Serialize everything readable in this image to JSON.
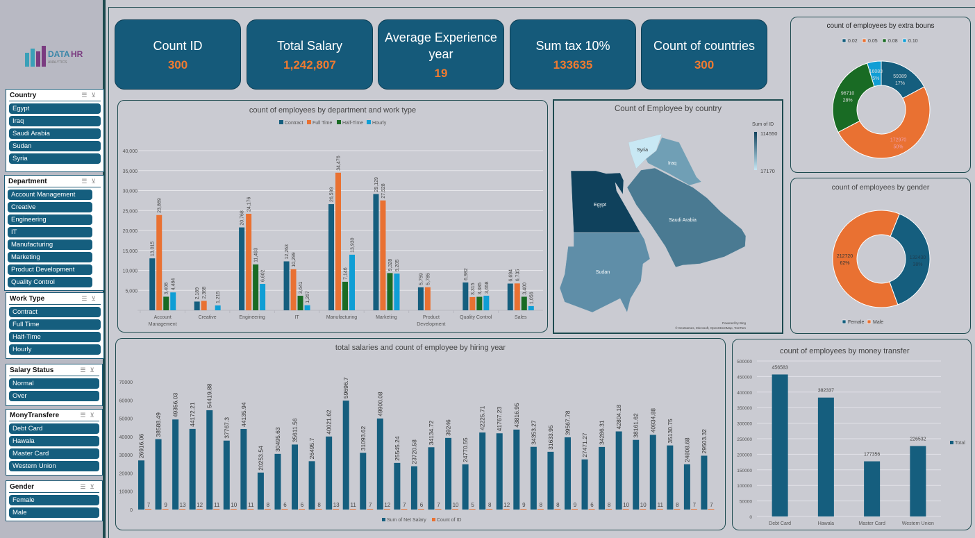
{
  "logo": {
    "text": "DATA HR ANALYTICS"
  },
  "slicers": [
    {
      "title": "Country",
      "items": [
        "Egypt",
        "Iraq",
        "Saudi Arabia",
        "Sudan",
        "Syria"
      ]
    },
    {
      "title": "Department",
      "items": [
        "Account Management",
        "Creative",
        "Engineering",
        "IT",
        "Manufacturing",
        "Marketing",
        "Product Development",
        "Quality Control"
      ]
    },
    {
      "title": "Work Type",
      "items": [
        "Contract",
        "Full Time",
        "Half-Time",
        "Hourly"
      ]
    },
    {
      "title": "Salary Status",
      "items": [
        "Normal",
        "Over"
      ]
    },
    {
      "title": "MonyTransfere",
      "items": [
        "Debt Card",
        "Hawala",
        "Master Card",
        "Western Union"
      ]
    },
    {
      "title": "Gender",
      "items": [
        "Female",
        "Male"
      ]
    }
  ],
  "kpis": [
    {
      "label": "Count ID",
      "value": "300"
    },
    {
      "label": "Total Salary",
      "value": "1,242,807"
    },
    {
      "label": "Average Experience year",
      "value": "19"
    },
    {
      "label": "Sum tax 10%",
      "value": "133635"
    },
    {
      "label": "Count of countries",
      "value": "300"
    }
  ],
  "colors": {
    "primary": "#155e7e",
    "orange": "#e97132",
    "green": "#196b24",
    "light_blue": "#0f9ed5",
    "kpi_bg": "#155a7a"
  },
  "map": {
    "title": "Count of Employee by country",
    "legend_title": "Sum of ID",
    "legend_max": "114550",
    "legend_min": "17170",
    "credit1": "Powered by Bing",
    "credit2": "© GeoNames, Microsoft, OpenStreetMap, TomTom",
    "countries": [
      {
        "name": "Egypt",
        "color": "#0f415c"
      },
      {
        "name": "Sudan",
        "color": "#5f8ea8"
      },
      {
        "name": "Saudi Arabia",
        "color": "#4a7a92"
      },
      {
        "name": "Iraq",
        "color": "#709fb5"
      },
      {
        "name": "Syria",
        "color": "#c8e8f4"
      }
    ]
  },
  "chart_data": [
    {
      "id": "dept",
      "type": "bar",
      "title": "count of employees by department and work type",
      "ylim": [
        0,
        40000
      ],
      "yticks": [
        "",
        "5,000",
        "10,000",
        "15,000",
        "20,000",
        "25,000",
        "30,000",
        "35,000",
        "40,000"
      ],
      "grid": true,
      "legend": "top",
      "categories": [
        "Account Management",
        "Creative",
        "Engineering",
        "IT",
        "Manufacturing",
        "Marketing",
        "Product Development",
        "Quality Control",
        "Sales"
      ],
      "series": [
        {
          "name": "Contract",
          "color": "#155e7e",
          "values": [
            13015,
            2189,
            20768,
            12263,
            26599,
            29129,
            5759,
            6982,
            6694
          ],
          "labels": [
            "13,015",
            "2,189",
            "20,768",
            "12,263",
            "26,599",
            "29,129",
            "5,759",
            "6,982",
            "6,694"
          ]
        },
        {
          "name": "Full Time",
          "color": "#e97132",
          "values": [
            23869,
            2368,
            24176,
            10299,
            34476,
            27528,
            5785,
            3315,
            6735
          ],
          "labels": [
            "23,869",
            "2,368",
            "24,176",
            "10,299",
            "34,476",
            "27,528",
            "5,785",
            "3,315",
            "6,735"
          ]
        },
        {
          "name": "Half-Time",
          "color": "#196b24",
          "values": [
            3408,
            null,
            11493,
            3641,
            7146,
            9328,
            null,
            3385,
            3400
          ],
          "labels": [
            "3,408",
            "",
            "11,493",
            "3,641",
            "7,146",
            "9,328",
            "",
            "3,385",
            "3,400"
          ]
        },
        {
          "name": "Hourly",
          "color": "#0f9ed5",
          "values": [
            4484,
            1215,
            6602,
            1267,
            13930,
            9205,
            null,
            3658,
            1056
          ],
          "labels": [
            "4,484",
            "1,215",
            "6,602",
            "1,267",
            "13,930",
            "9,205",
            "",
            "3,658",
            "1,056"
          ]
        }
      ]
    },
    {
      "id": "hiring",
      "type": "bar",
      "title": "total salaries and count of employee by hiring year",
      "ylim": [
        0,
        70000
      ],
      "yticks": [
        "0",
        "10000",
        "20000",
        "30000",
        "40000",
        "50000",
        "60000",
        "70000"
      ],
      "grid": false,
      "legend": "bottom",
      "series": [
        {
          "name": "Sum of Net Salary",
          "color": "#155e7e",
          "values": [
            26916.06,
            38588.49,
            49356.03,
            44172.21,
            54419.88,
            37767.3,
            44135.94,
            20253.54,
            30495.63,
            35611.56,
            26495.7,
            40021.62,
            59696.7,
            31093.62,
            49900.08,
            25545.24,
            23720.58,
            34134.72,
            39246,
            24770.55,
            42225.71,
            41767.23,
            43816.95,
            34353.27,
            31633.95,
            39567.78,
            27471.27,
            34286.31,
            42804.18,
            38161.62,
            40934.88,
            35130.75,
            24808.68,
            29503.32
          ]
        },
        {
          "name": "Count of ID",
          "color": "#e97132",
          "values": [
            7,
            9,
            13,
            12,
            11,
            10,
            11,
            8,
            6,
            6,
            8,
            13,
            11,
            7,
            12,
            7,
            6,
            7,
            10,
            5,
            8,
            12,
            9,
            8,
            8,
            9,
            6,
            8,
            10,
            10,
            11,
            8,
            7,
            7
          ]
        }
      ]
    },
    {
      "id": "bonus",
      "type": "pie",
      "title": "count of employees by extra bouns",
      "legend": "top",
      "startAngle": 0,
      "categories": [
        "0.02",
        "0.05",
        "0.08",
        "0.10"
      ],
      "values": [
        59389,
        172970,
        96710,
        16083
      ],
      "percents": [
        "17%",
        "50%",
        "28%",
        "5%"
      ],
      "colors": [
        "#155e7e",
        "#e97132",
        "#196b24",
        "#0f9ed5"
      ],
      "labelColors": [
        "#ddd",
        "#f0a0b0",
        "#ddd",
        "#ddd"
      ]
    },
    {
      "id": "gender",
      "type": "pie",
      "title": "count of employees by gender",
      "legend": "bottom",
      "startAngle": 22,
      "categories": [
        "Female",
        "Male"
      ],
      "values": [
        132430,
        212720
      ],
      "percents": [
        "38%",
        "62%"
      ],
      "colors": [
        "#155e7e",
        "#e97132"
      ],
      "labelColors": [
        "#1e3d50",
        "#333"
      ]
    },
    {
      "id": "money",
      "type": "bar",
      "title": "count of employees by money transfer",
      "ylim": [
        0,
        500000
      ],
      "yticks": [
        "0",
        "50000",
        "100000",
        "150000",
        "200000",
        "250000",
        "300000",
        "350000",
        "400000",
        "450000",
        "500000"
      ],
      "grid": true,
      "legend": "right",
      "categories": [
        "Debt Card",
        "Hawala",
        "Master Card",
        "Western Union"
      ],
      "series": [
        {
          "name": "Total",
          "color": "#155e7e",
          "values": [
            456583,
            382337,
            177356,
            226532
          ],
          "labels": [
            "456583",
            "382337",
            "177356",
            "226532"
          ]
        }
      ]
    }
  ]
}
